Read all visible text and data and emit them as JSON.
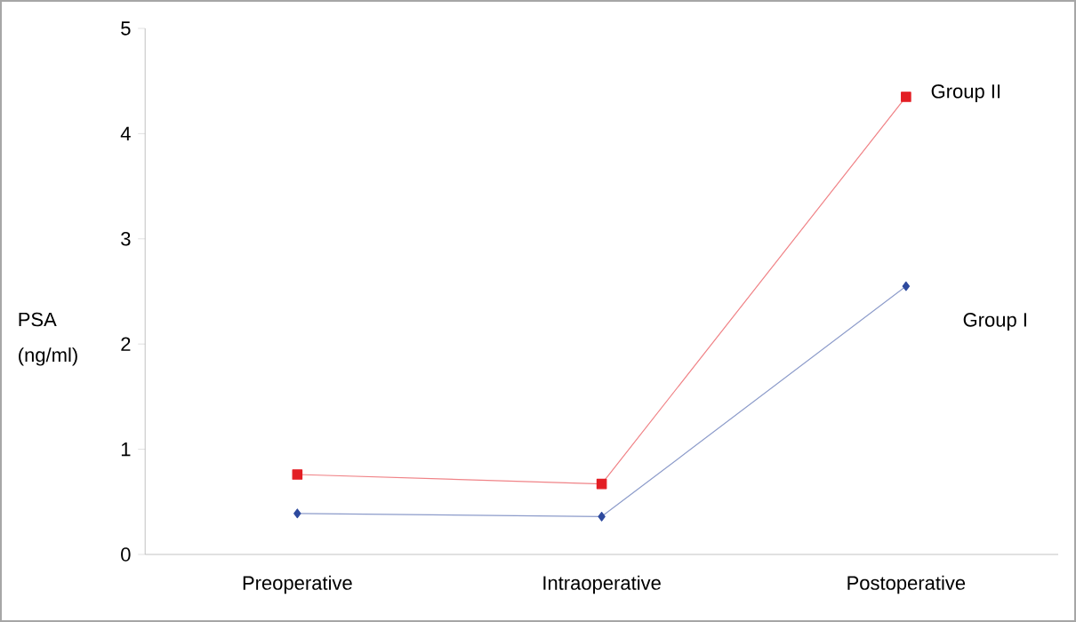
{
  "chart_data": {
    "type": "line",
    "ylabel": "PSA (ng/ml)",
    "categories": [
      "Preoperative",
      "Intraoperative",
      "Postoperative"
    ],
    "series": [
      {
        "name": "Group II",
        "color": "#e31e24",
        "values": [
          0.76,
          0.67,
          4.35
        ],
        "marker": "square"
      },
      {
        "name": "Group I",
        "color": "#2e4a9e",
        "values": [
          0.39,
          0.36,
          2.55
        ],
        "marker": "diamond"
      }
    ],
    "ylim": [
      0,
      5
    ],
    "yticks": [
      0,
      1,
      2,
      3,
      4,
      5
    ],
    "grid": false,
    "legend": false
  }
}
